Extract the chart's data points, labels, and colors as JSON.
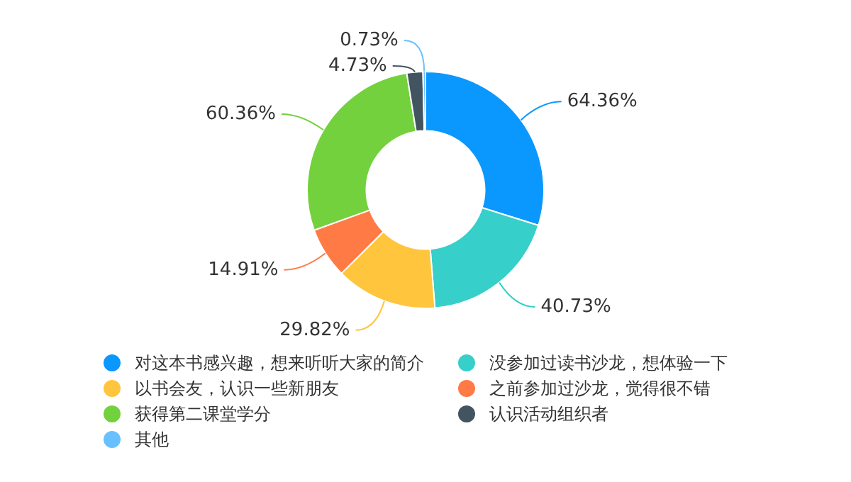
{
  "chart_data": {
    "type": "donut",
    "categories": [
      "对这本书感兴趣，想来听听大家的简介",
      "没参加过读书沙龙，想体验一下",
      "以书会友，认识一些新朋友",
      "之前参加过沙龙，觉得很不错",
      "获得第二课堂学分",
      "认识活动组织者",
      "其他"
    ],
    "values": [
      64.36,
      40.73,
      29.82,
      14.91,
      60.36,
      4.73,
      0.73
    ],
    "colors": [
      "#0a98ff",
      "#36cfc9",
      "#ffc53d",
      "#ff7a45",
      "#73d13d",
      "#435461",
      "#69c0ff"
    ],
    "value_labels": [
      "64.36%",
      "40.73%",
      "29.82%",
      "14.91%",
      "60.36%",
      "4.73%",
      "0.73%"
    ],
    "legend": "bottom"
  }
}
